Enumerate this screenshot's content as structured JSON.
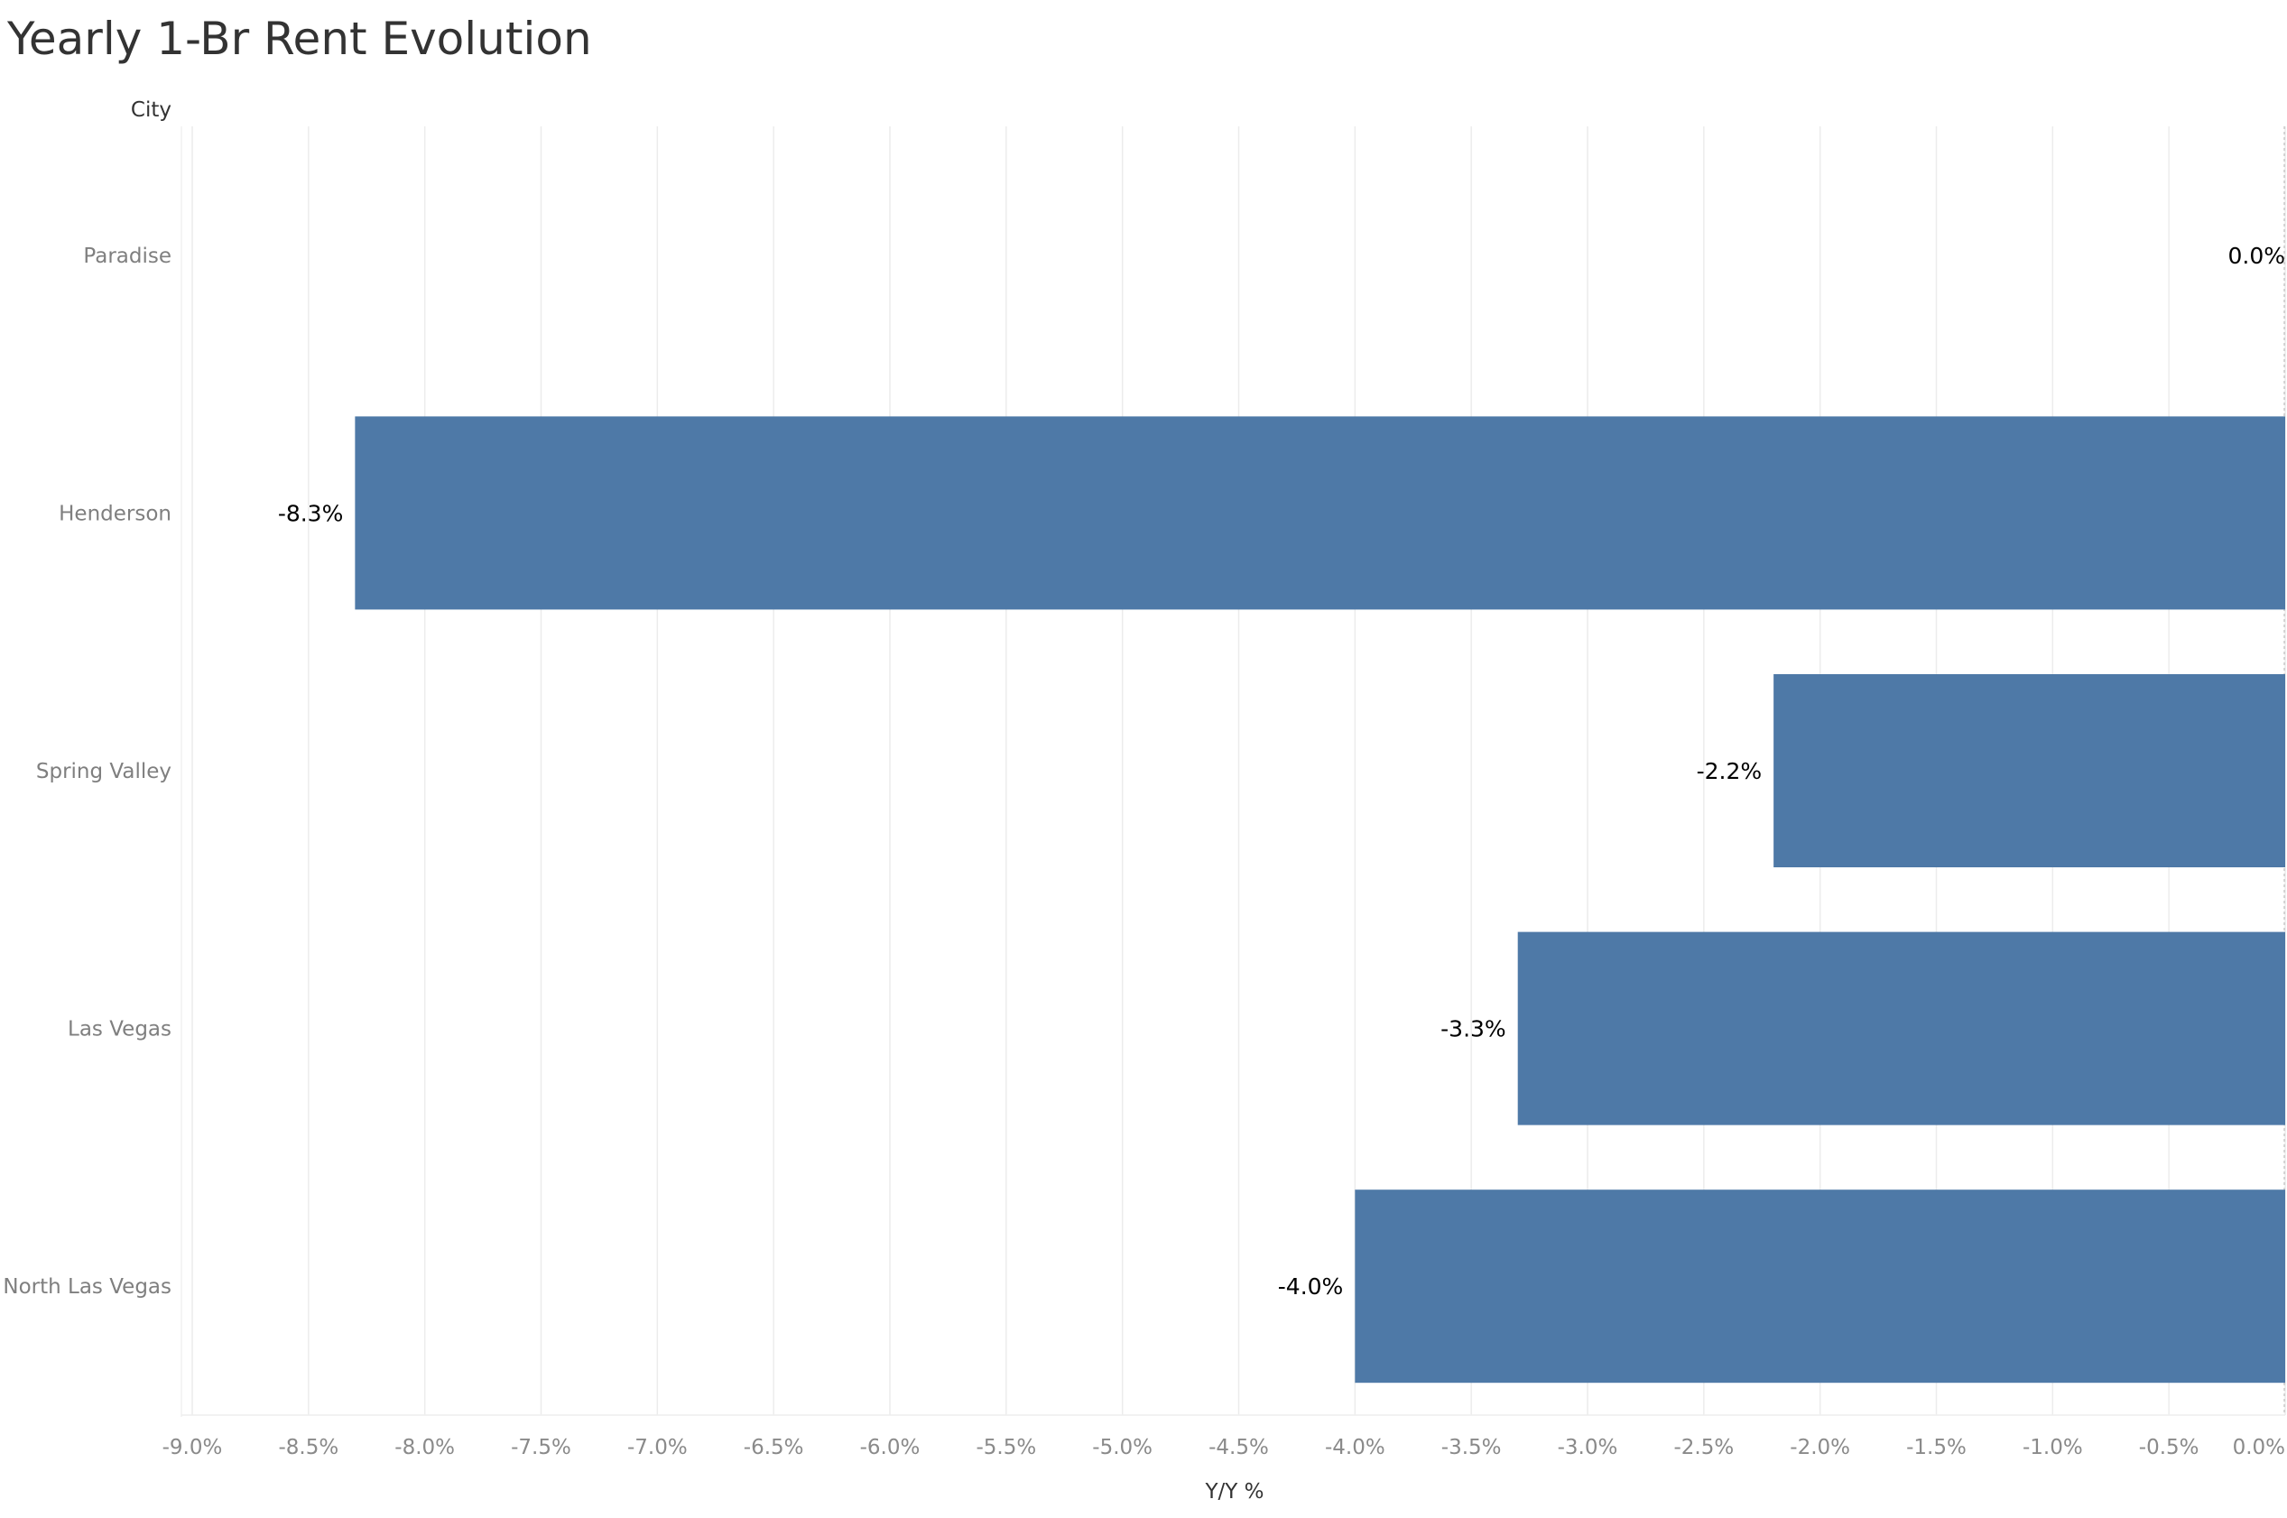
{
  "title": "Yearly 1-Br Rent Evolution",
  "colors": {
    "bar": "#4e79a7",
    "grid": "#ececec",
    "zero_line": "#bdbdbd"
  },
  "chart_data": {
    "type": "bar",
    "orientation": "horizontal",
    "title": "Yearly 1-Br Rent Evolution",
    "ylabel": "City",
    "xlabel": "Y/Y %",
    "categories": [
      "Paradise",
      "Henderson",
      "Spring Valley",
      "Las Vegas",
      "North Las Vegas"
    ],
    "values": [
      0.0,
      -8.3,
      -2.2,
      -3.3,
      -4.0
    ],
    "data_labels": [
      "0.0%",
      "-8.3%",
      "-2.2%",
      "-3.3%",
      "-4.0%"
    ],
    "xlim": [
      -9.0,
      0.0
    ],
    "xticks": [
      -9.0,
      -8.5,
      -8.0,
      -7.5,
      -7.0,
      -6.5,
      -6.0,
      -5.5,
      -5.0,
      -4.5,
      -4.0,
      -3.5,
      -3.0,
      -2.5,
      -2.0,
      -1.5,
      -1.0,
      -0.5,
      0.0
    ],
    "xtick_labels": [
      "-9.0%",
      "-8.5%",
      "-8.0%",
      "-7.5%",
      "-7.0%",
      "-6.5%",
      "-6.0%",
      "-5.5%",
      "-5.0%",
      "-4.5%",
      "-4.0%",
      "-3.5%",
      "-3.0%",
      "-2.5%",
      "-2.0%",
      "-1.5%",
      "-1.0%",
      "-0.5%",
      "0.0%"
    ],
    "grid": true,
    "legend": "none"
  }
}
